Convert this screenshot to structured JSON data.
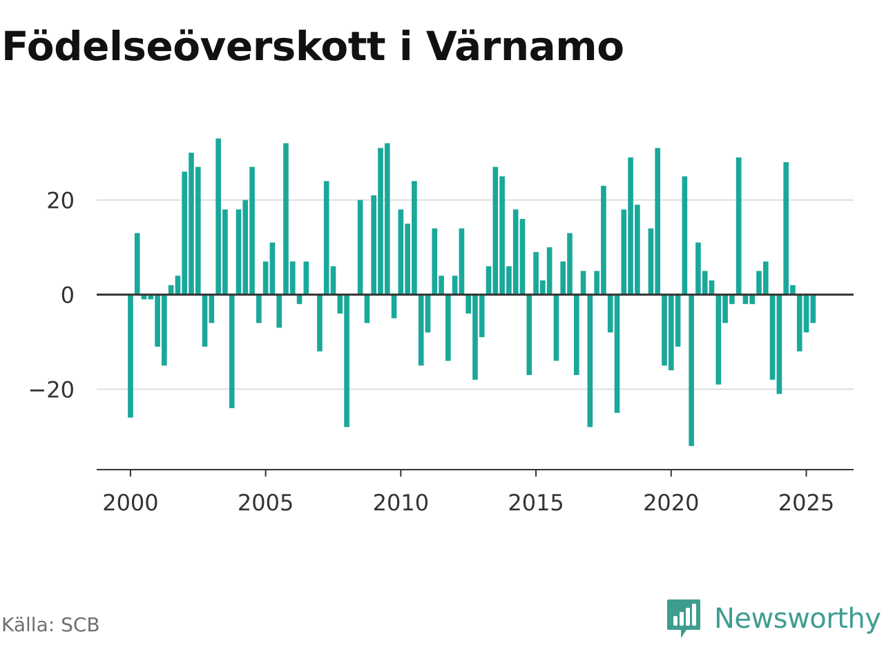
{
  "colors": {
    "bar": "#19a89a",
    "zero_line": "#333333",
    "grid": "#dedede",
    "axis": "#333333",
    "tick_text": "#333333",
    "brand": "#3f9d90"
  },
  "footer": {
    "source": "Källa: SCB",
    "brand_name": "Newsworthy",
    "brand_icon": "bar-chart-speech-bubble-icon"
  },
  "chart_data": {
    "type": "bar",
    "title": "Födelseöverskott i Värnamo",
    "xlabel": "",
    "ylabel": "",
    "grid": true,
    "legend": "none",
    "x_ticks": [
      2000,
      2005,
      2010,
      2015,
      2020,
      2025
    ],
    "y_ticks": [
      20,
      0,
      -20
    ],
    "y_tick_labels": [
      "20",
      "0",
      "−20"
    ],
    "ylim": [
      -37,
      36
    ],
    "xlim": [
      1998.75,
      2026.75
    ],
    "frequency": "monthly",
    "start": "2000-01",
    "x": [
      2000.0,
      2000.25,
      2000.5,
      2000.75,
      2001.0,
      2001.25,
      2001.5,
      2001.75,
      2002.0,
      2002.25,
      2002.5,
      2002.75,
      2003.0,
      2003.25,
      2003.5,
      2003.75,
      2004.0,
      2004.25,
      2004.5,
      2004.75,
      2005.0,
      2005.25,
      2005.5,
      2005.75,
      2006.0,
      2006.25,
      2006.5,
      2006.75,
      2007.0,
      2007.25,
      2007.5,
      2007.75,
      2008.0,
      2008.25,
      2008.5,
      2008.75,
      2009.0,
      2009.25,
      2009.5,
      2009.75,
      2010.0,
      2010.25,
      2010.5,
      2010.75,
      2011.0,
      2011.25,
      2011.5,
      2011.75,
      2012.0,
      2012.25,
      2012.5,
      2012.75,
      2013.0,
      2013.25,
      2013.5,
      2013.75,
      2014.0,
      2014.25,
      2014.5,
      2014.75,
      2015.0,
      2015.25,
      2015.5,
      2015.75,
      2016.0,
      2016.25,
      2016.5,
      2016.75,
      2017.0,
      2017.25,
      2017.5,
      2017.75,
      2018.0,
      2018.25,
      2018.5,
      2018.75,
      2019.0,
      2019.25,
      2019.5,
      2019.75,
      2020.0,
      2020.25,
      2020.5,
      2020.75,
      2021.0,
      2021.25,
      2021.5,
      2021.75,
      2022.0,
      2022.25,
      2022.5,
      2022.75,
      2023.0,
      2023.25,
      2023.5,
      2023.75,
      2024.0,
      2024.25,
      2024.5,
      2024.75,
      2025.0,
      2025.25
    ],
    "values": [
      -26,
      13,
      -1,
      -1,
      -11,
      -15,
      2,
      4,
      26,
      30,
      27,
      -11,
      -6,
      33,
      18,
      -24,
      18,
      20,
      27,
      -6,
      7,
      11,
      -7,
      32,
      7,
      -2,
      7,
      0,
      -12,
      24,
      6,
      -4,
      -28,
      0,
      20,
      -6,
      21,
      31,
      32,
      -5,
      18,
      15,
      24,
      -15,
      -8,
      14,
      4,
      -14,
      4,
      14,
      -4,
      -18,
      -9,
      6,
      27,
      25,
      6,
      18,
      16,
      -17,
      9,
      3,
      10,
      -14,
      7,
      13,
      -17,
      5,
      -28,
      5,
      23,
      -8,
      -25,
      18,
      29,
      19,
      0,
      14,
      31,
      -15,
      -16,
      -11,
      25,
      -32,
      11,
      5,
      3,
      -19,
      -6,
      -2,
      29,
      -2,
      -2,
      5,
      7,
      -18,
      -21,
      28,
      2,
      -12,
      -8,
      -6
    ]
  }
}
